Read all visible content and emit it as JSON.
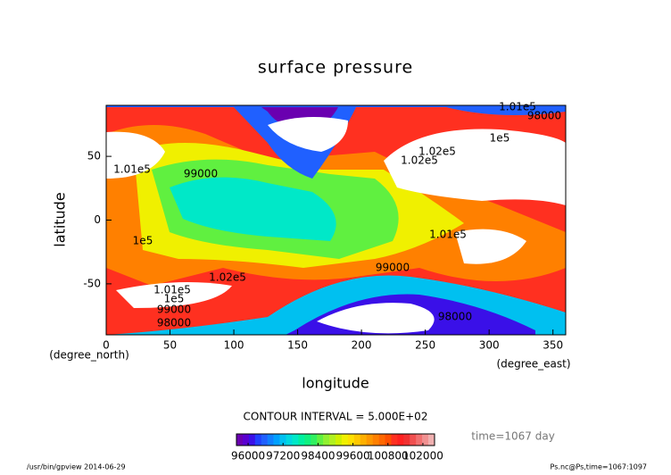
{
  "chart_data": {
    "type": "contour",
    "title": "surface pressure",
    "x_label": "longitude",
    "y_label": "latitude",
    "x_unit": "(degree_east)",
    "y_unit": "(degree_north)",
    "xlim": [
      0,
      360
    ],
    "xticks": [
      0,
      50,
      100,
      150,
      200,
      250,
      300,
      350
    ],
    "ylim": [
      -90,
      90
    ],
    "yticks": [
      -50,
      0,
      50
    ],
    "contour_interval": "CONTOUR INTERVAL = 5.000E+02",
    "time_label": "time=1067 day",
    "contour_labels": [
      "1.01e5",
      "99000",
      "1e5",
      "1.02e5",
      "98000",
      "1.02e5",
      "1.01e5",
      "1e5",
      "98000",
      "99000",
      "1.01e5",
      "99000",
      "1e5",
      "1.01e5",
      "1.02e5",
      "98000"
    ],
    "colorbar": {
      "lim": [
        95600,
        102400
      ],
      "ticks": [
        96000,
        97200,
        98400,
        99600,
        100800,
        102000
      ],
      "colors": [
        "#6a00b0",
        "#5a00d0",
        "#3a10e8",
        "#2040ff",
        "#2060ff",
        "#1080ff",
        "#00a0ff",
        "#00c0f0",
        "#00d8e0",
        "#00e8c8",
        "#00f0a0",
        "#10f080",
        "#30f060",
        "#60f040",
        "#90f030",
        "#b0f020",
        "#d0f000",
        "#f0f000",
        "#ffe000",
        "#ffc800",
        "#ffb000",
        "#ff9800",
        "#ff8000",
        "#ff6800",
        "#ff5000",
        "#ff3020",
        "#ff2020",
        "#f03030",
        "#f05050",
        "#f07070",
        "#f09090",
        "#f0b0b0"
      ]
    },
    "footer_left": "/usr/bin/gpview  2014-06-29",
    "footer_right": "Ps.nc@Ps,time=1067:1097"
  }
}
